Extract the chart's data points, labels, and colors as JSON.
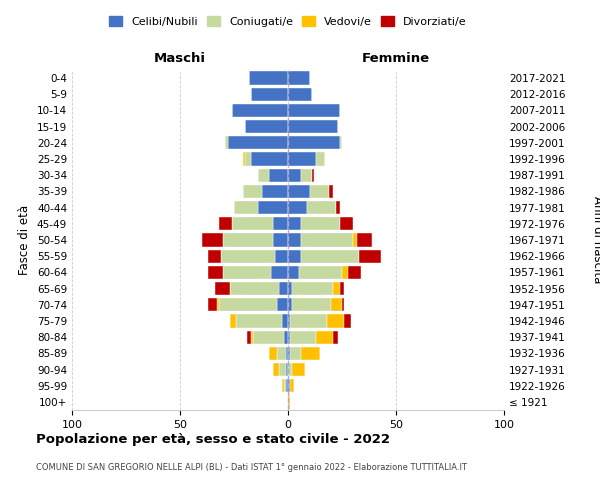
{
  "age_groups": [
    "100+",
    "95-99",
    "90-94",
    "85-89",
    "80-84",
    "75-79",
    "70-74",
    "65-69",
    "60-64",
    "55-59",
    "50-54",
    "45-49",
    "40-44",
    "35-39",
    "30-34",
    "25-29",
    "20-24",
    "15-19",
    "10-14",
    "5-9",
    "0-4"
  ],
  "birth_years": [
    "≤ 1921",
    "1922-1926",
    "1927-1931",
    "1932-1936",
    "1937-1941",
    "1942-1946",
    "1947-1951",
    "1952-1956",
    "1957-1961",
    "1962-1966",
    "1967-1971",
    "1972-1976",
    "1977-1981",
    "1982-1986",
    "1987-1991",
    "1992-1996",
    "1997-2001",
    "2002-2006",
    "2007-2011",
    "2012-2016",
    "2017-2021"
  ],
  "colors": {
    "celibi": "#4472c4",
    "coniugati": "#c5d9a0",
    "vedovi": "#ffc000",
    "divorziati": "#c00000"
  },
  "maschi": {
    "celibi": [
      0,
      1,
      1,
      1,
      2,
      3,
      5,
      4,
      8,
      6,
      7,
      7,
      14,
      12,
      9,
      17,
      28,
      20,
      26,
      17,
      18
    ],
    "coniugati": [
      0,
      1,
      3,
      4,
      14,
      21,
      27,
      23,
      22,
      25,
      23,
      19,
      11,
      9,
      5,
      3,
      1,
      0,
      0,
      0,
      0
    ],
    "vedovi": [
      0,
      1,
      3,
      4,
      1,
      3,
      1,
      0,
      0,
      0,
      0,
      0,
      0,
      0,
      0,
      1,
      0,
      0,
      0,
      0,
      0
    ],
    "divorziati": [
      0,
      0,
      0,
      0,
      2,
      0,
      4,
      7,
      7,
      6,
      10,
      6,
      0,
      0,
      0,
      0,
      0,
      0,
      0,
      0,
      0
    ]
  },
  "femmine": {
    "celibi": [
      0,
      1,
      0,
      1,
      1,
      1,
      2,
      2,
      5,
      6,
      6,
      6,
      9,
      10,
      6,
      13,
      24,
      23,
      24,
      11,
      10
    ],
    "coniugati": [
      0,
      0,
      2,
      5,
      12,
      17,
      18,
      19,
      20,
      27,
      24,
      18,
      13,
      9,
      5,
      4,
      1,
      0,
      0,
      0,
      0
    ],
    "vedovi": [
      1,
      2,
      6,
      9,
      8,
      8,
      5,
      3,
      3,
      0,
      2,
      0,
      0,
      0,
      0,
      0,
      0,
      0,
      0,
      0,
      0
    ],
    "divorziati": [
      0,
      0,
      0,
      0,
      2,
      3,
      1,
      2,
      6,
      10,
      7,
      6,
      2,
      2,
      1,
      0,
      0,
      0,
      0,
      0,
      0
    ]
  },
  "xlim": 100,
  "title": "Popolazione per età, sesso e stato civile - 2022",
  "subtitle": "COMUNE DI SAN GREGORIO NELLE ALPI (BL) - Dati ISTAT 1° gennaio 2022 - Elaborazione TUTTITALIA.IT",
  "xlabel_left": "Maschi",
  "xlabel_right": "Femmine",
  "ylabel": "Fasce di età",
  "ylabel_right": "Anni di nascita",
  "legend_labels": [
    "Celibi/Nubili",
    "Coniugati/e",
    "Vedovi/e",
    "Divorziati/e"
  ],
  "background_color": "#ffffff",
  "grid_color": "#cccccc"
}
